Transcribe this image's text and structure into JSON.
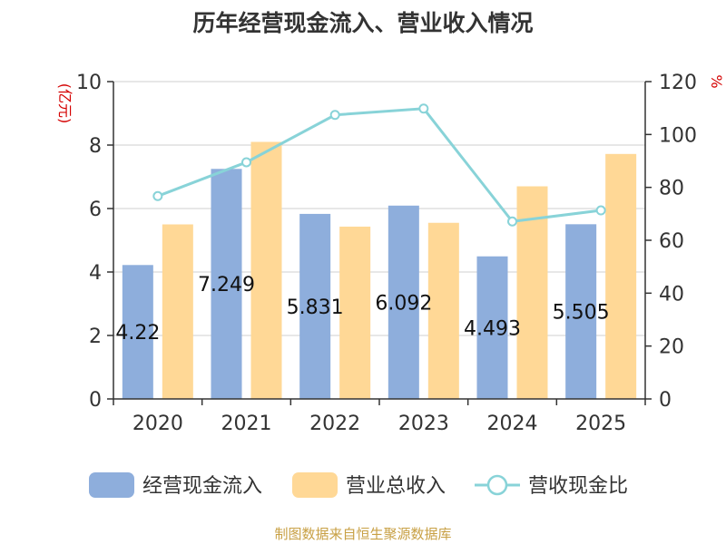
{
  "chart_data": {
    "type": "bar",
    "title": "历年经营现金流入、营业收入情况",
    "source": "制图数据来自恒生聚源数据库",
    "categories": [
      "2020",
      "2021",
      "2022",
      "2023",
      "2024",
      "2025"
    ],
    "series": [
      {
        "name": "经营现金流入",
        "type": "bar",
        "axis": "left",
        "color": "#8eaedc",
        "values": [
          4.22,
          7.249,
          5.831,
          6.092,
          4.493,
          5.505
        ],
        "labels": [
          "4.22",
          "7.249",
          "5.831",
          "6.092",
          "4.493",
          "5.505"
        ]
      },
      {
        "name": "营业总收入",
        "type": "bar",
        "axis": "left",
        "color": "#ffd896",
        "values": [
          5.5,
          8.1,
          5.43,
          5.55,
          6.7,
          7.72
        ]
      },
      {
        "name": "营收现金比",
        "type": "line",
        "axis": "right",
        "color": "#88d3d8",
        "values": [
          76.7,
          89.5,
          107.4,
          109.8,
          67.1,
          71.3
        ]
      }
    ],
    "y_left": {
      "unit": "(亿元)",
      "min": 0,
      "max": 10,
      "ticks": [
        "0",
        "2",
        "4",
        "6",
        "8",
        "10"
      ]
    },
    "y_right": {
      "unit": "%",
      "min": 0,
      "max": 120,
      "ticks": [
        "0",
        "20",
        "40",
        "60",
        "80",
        "100",
        "120"
      ]
    },
    "grid": true,
    "legend_position": "bottom"
  }
}
